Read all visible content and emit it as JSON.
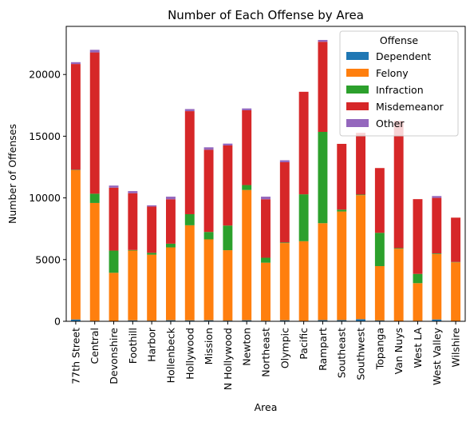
{
  "chart_data": {
    "type": "bar",
    "stacked": true,
    "title": "Number of Each Offense by Area",
    "xlabel": "Area",
    "ylabel": "Number of Offenses",
    "ylim": [
      0,
      23900
    ],
    "yticks": [
      0,
      5000,
      10000,
      15000,
      20000
    ],
    "legend": {
      "title": "Offense",
      "position": "top-right"
    },
    "categories": [
      "77th Street",
      "Central",
      "Devonshire",
      "Foothill",
      "Harbor",
      "Hollenbeck",
      "Hollywood",
      "Mission",
      "N Hollywood",
      "Newton",
      "Northeast",
      "Olympic",
      "Pacific",
      "Rampart",
      "Southeast",
      "Southwest",
      "Topanga",
      "Van Nuys",
      "West LA",
      "West Valley",
      "Wilshire"
    ],
    "series": [
      {
        "name": "Dependent",
        "color": "#1f77b4",
        "values": [
          150,
          40,
          30,
          80,
          50,
          90,
          80,
          90,
          60,
          90,
          50,
          90,
          40,
          100,
          100,
          170,
          70,
          30,
          40,
          150,
          30
        ]
      },
      {
        "name": "Felony",
        "color": "#ff7f0e",
        "values": [
          12100,
          9550,
          3900,
          5650,
          5350,
          5900,
          7700,
          6550,
          5700,
          10550,
          4700,
          6250,
          6450,
          7850,
          8800,
          10050,
          4400,
          5850,
          3050,
          5300,
          4750
        ]
      },
      {
        "name": "Infraction",
        "color": "#2ca02c",
        "values": [
          30,
          750,
          1800,
          50,
          150,
          300,
          900,
          600,
          2000,
          400,
          400,
          50,
          3800,
          7400,
          150,
          50,
          2700,
          50,
          750,
          50,
          30
        ]
      },
      {
        "name": "Misdemeanor",
        "color": "#d62728",
        "values": [
          8570,
          11450,
          5100,
          4600,
          3750,
          3600,
          8350,
          6660,
          6490,
          6060,
          4740,
          6500,
          8310,
          7300,
          5330,
          5000,
          5250,
          10320,
          6060,
          4500,
          3590
        ]
      },
      {
        "name": "Other",
        "color": "#9467bd",
        "values": [
          150,
          210,
          170,
          170,
          100,
          210,
          170,
          200,
          150,
          150,
          210,
          160,
          0,
          150,
          0,
          0,
          0,
          0,
          0,
          150,
          0
        ]
      }
    ]
  }
}
